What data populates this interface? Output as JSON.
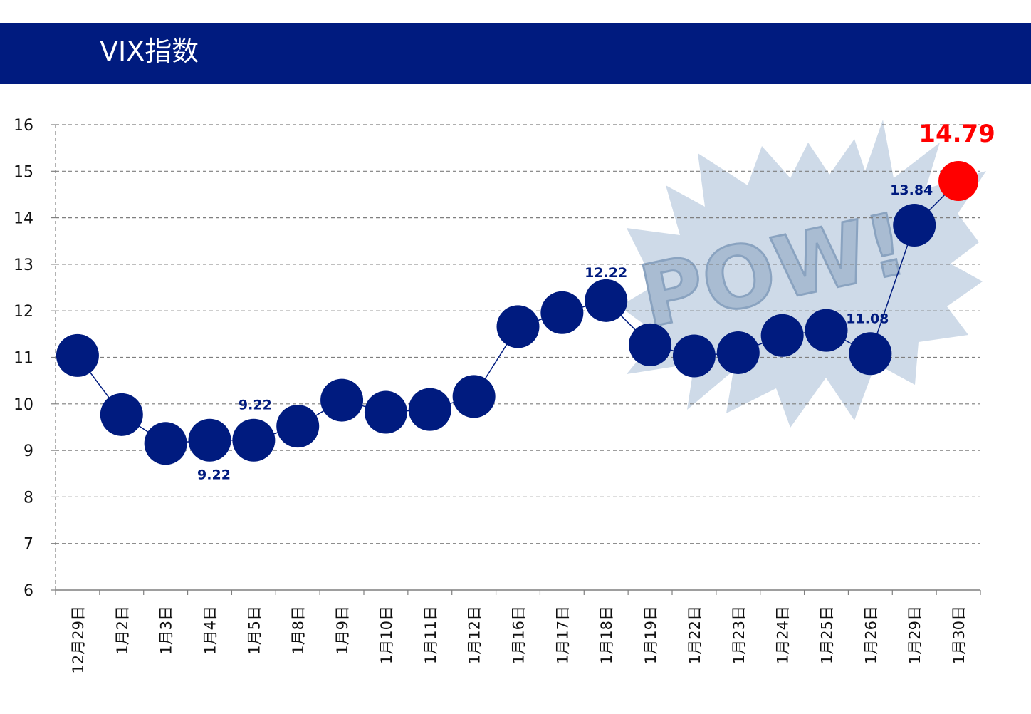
{
  "header": {
    "title": "VIX指数",
    "background": "#001b7f"
  },
  "chart_data": {
    "type": "line",
    "title": "",
    "xlabel": "",
    "ylabel": "",
    "ylim": [
      6,
      16
    ],
    "yticks": [
      6,
      7,
      8,
      9,
      10,
      11,
      12,
      13,
      14,
      15,
      16
    ],
    "grid": true,
    "categories": [
      "12月29日",
      "1月2日",
      "1月3日",
      "1月4日",
      "1月5日",
      "1月8日",
      "1月9日",
      "1月10日",
      "1月11日",
      "1月12日",
      "1月16日",
      "1月17日",
      "1月18日",
      "1月19日",
      "1月22日",
      "1月23日",
      "1月24日",
      "1月25日",
      "1月26日",
      "1月29日",
      "1月30日"
    ],
    "series": [
      {
        "name": "",
        "color": "#001b7f",
        "values": [
          11.04,
          9.77,
          9.15,
          9.22,
          9.22,
          9.52,
          10.08,
          9.82,
          9.88,
          10.16,
          11.66,
          11.96,
          12.22,
          11.27,
          11.03,
          11.1,
          11.47,
          11.58,
          11.08,
          13.84,
          14.79
        ]
      }
    ],
    "data_labels": [
      {
        "index": 3,
        "text": "9.22"
      },
      {
        "index": 4,
        "text": "9.22"
      },
      {
        "index": 12,
        "text": "12.22"
      },
      {
        "index": 18,
        "text": "11.08"
      },
      {
        "index": 19,
        "text": "13.84"
      }
    ],
    "highlight": {
      "index": 20,
      "text": "14.79",
      "color": "#ff0000"
    },
    "background_graphic": {
      "name": "pow-burst-icon",
      "text": "POW!",
      "color": "#c9d6e6"
    }
  }
}
